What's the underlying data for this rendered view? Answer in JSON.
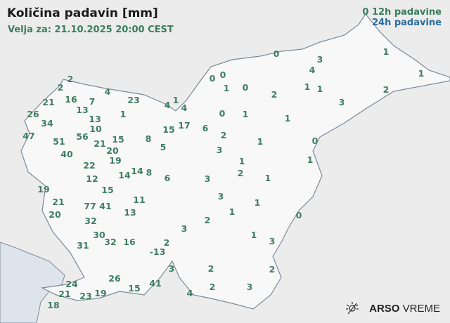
{
  "header": {
    "title": "Količina padavin [mm]",
    "valid": "Velja za: 21.10.2025 20:00 CEST"
  },
  "legend": {
    "sample_value": "0",
    "label_12h": "12h padavine",
    "label_24h": "24h padavine",
    "color_12h": "#3a7d5e",
    "color_24h": "#2a6c9c"
  },
  "logo": {
    "icon": "sun-weather-icon",
    "brand": "ARSO",
    "product": "VREME"
  },
  "stations": [
    "0",
    "3",
    "1",
    "1",
    "4",
    "0",
    "0",
    "1",
    "0",
    "1",
    "1",
    "2",
    "2",
    "3",
    "2",
    "2",
    "4",
    "21",
    "16",
    "7",
    "23",
    "4",
    "1",
    "4",
    "26",
    "34",
    "13",
    "13",
    "1",
    "0",
    "1",
    "1",
    "15",
    "17",
    "6",
    "2",
    "10",
    "47",
    "56",
    "51",
    "21",
    "15",
    "20",
    "8",
    "5",
    "3",
    "1",
    "0",
    "40",
    "19",
    "22",
    "1",
    "1",
    "14",
    "14",
    "8",
    "6",
    "3",
    "2",
    "1",
    "12",
    "19",
    "15",
    "21",
    "11",
    "77",
    "41",
    "3",
    "1",
    "20",
    "13",
    "1",
    "0",
    "32",
    "2",
    "3",
    "30",
    "1",
    "32",
    "16",
    "31",
    "2",
    "3",
    "-13",
    "3",
    "2",
    "2",
    "26",
    "24",
    "21",
    "41",
    "15",
    "19",
    "23",
    "4",
    "2",
    "3",
    "18"
  ]
}
